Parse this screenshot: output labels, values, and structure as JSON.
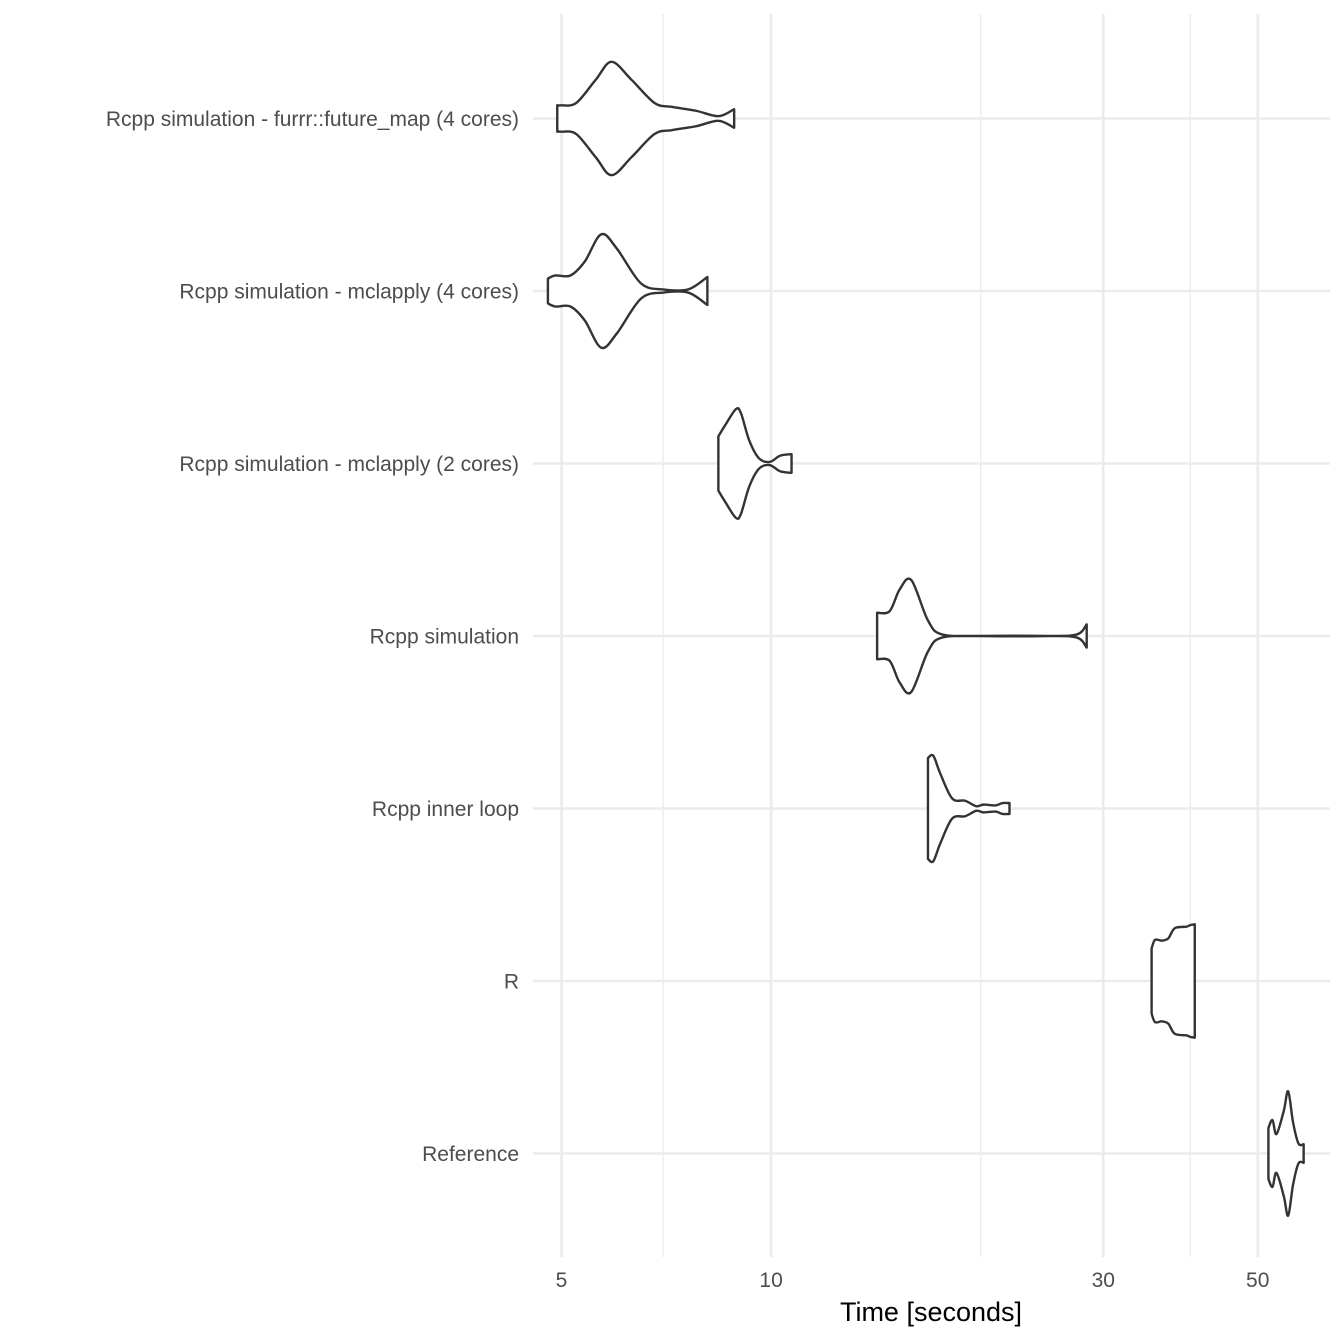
{
  "chart_data": {
    "type": "violin",
    "orientation": "horizontal",
    "xlabel": "Time [seconds]",
    "ylabel": "",
    "xscale": "log10",
    "xlim": [
      4.55,
      63.5
    ],
    "x_ticks": [
      5,
      10,
      30,
      50
    ],
    "x_tick_labels": [
      "5",
      "10",
      "30",
      "50"
    ],
    "x_minor_gridlines": [
      7,
      20,
      40
    ],
    "grid": true,
    "legend": "none",
    "categories": [
      "Rcpp simulation - furrr::future_map (4 cores)",
      "Rcpp simulation - mclapply (4 cores)",
      "Rcpp simulation - mclapply (2 cores)",
      "Rcpp simulation",
      "Rcpp inner loop",
      "R",
      "Reference"
    ],
    "series": [
      {
        "category": "Rcpp simulation - furrr::future_map (4 cores)",
        "min": 4.93,
        "max": 8.85,
        "density_profile": [
          [
            4.93,
            0.17
          ],
          [
            5.0,
            0.17
          ],
          [
            5.25,
            0.2
          ],
          [
            5.6,
            0.5
          ],
          [
            5.9,
            0.73
          ],
          [
            6.3,
            0.5
          ],
          [
            6.8,
            0.2
          ],
          [
            7.2,
            0.15
          ],
          [
            7.8,
            0.1
          ],
          [
            8.4,
            0.03
          ],
          [
            8.85,
            0.12
          ]
        ]
      },
      {
        "category": "Rcpp simulation - mclapply (4 cores)",
        "min": 4.78,
        "max": 8.1,
        "density_profile": [
          [
            4.78,
            0.16
          ],
          [
            4.9,
            0.2
          ],
          [
            5.15,
            0.2
          ],
          [
            5.4,
            0.38
          ],
          [
            5.7,
            0.73
          ],
          [
            6.0,
            0.55
          ],
          [
            6.5,
            0.1
          ],
          [
            7.0,
            0.02
          ],
          [
            7.6,
            0.02
          ],
          [
            8.1,
            0.18
          ]
        ]
      },
      {
        "category": "Rcpp simulation - mclapply (2 cores)",
        "min": 8.4,
        "max": 10.7,
        "density_profile": [
          [
            8.4,
            0.35
          ],
          [
            8.6,
            0.5
          ],
          [
            8.9,
            0.7
          ],
          [
            9.05,
            0.65
          ],
          [
            9.3,
            0.3
          ],
          [
            9.6,
            0.07
          ],
          [
            9.95,
            0.02
          ],
          [
            10.3,
            0.1
          ],
          [
            10.7,
            0.12
          ]
        ]
      },
      {
        "category": "Rcpp simulation",
        "min": 14.2,
        "max": 28.4,
        "density_profile": [
          [
            14.2,
            0.3
          ],
          [
            14.8,
            0.32
          ],
          [
            15.3,
            0.6
          ],
          [
            15.9,
            0.72
          ],
          [
            16.8,
            0.2
          ],
          [
            17.6,
            0.02
          ],
          [
            20.0,
            0.0
          ],
          [
            25.0,
            0.0
          ],
          [
            27.5,
            0.02
          ],
          [
            28.4,
            0.15
          ]
        ]
      },
      {
        "category": "Rcpp inner loop",
        "min": 16.8,
        "max": 22.0,
        "density_profile": [
          [
            16.8,
            0.65
          ],
          [
            17.1,
            0.68
          ],
          [
            17.5,
            0.45
          ],
          [
            18.2,
            0.13
          ],
          [
            19.0,
            0.1
          ],
          [
            19.7,
            0.03
          ],
          [
            20.2,
            0.05
          ],
          [
            21.0,
            0.04
          ],
          [
            21.5,
            0.07
          ],
          [
            22.0,
            0.07
          ]
        ]
      },
      {
        "category": "R",
        "min": 35.2,
        "max": 40.6,
        "density_profile": [
          [
            35.2,
            0.42
          ],
          [
            35.6,
            0.53
          ],
          [
            36.4,
            0.52
          ],
          [
            37.2,
            0.55
          ],
          [
            38.0,
            0.68
          ],
          [
            39.5,
            0.7
          ],
          [
            40.0,
            0.72
          ],
          [
            40.6,
            0.73
          ]
        ]
      },
      {
        "category": "Reference",
        "min": 51.8,
        "max": 58.2,
        "density_profile": [
          [
            51.8,
            0.33
          ],
          [
            52.5,
            0.43
          ],
          [
            53.2,
            0.25
          ],
          [
            54.5,
            0.55
          ],
          [
            55.3,
            0.8
          ],
          [
            56.2,
            0.4
          ],
          [
            57.2,
            0.13
          ],
          [
            58.2,
            0.12
          ]
        ]
      }
    ]
  }
}
